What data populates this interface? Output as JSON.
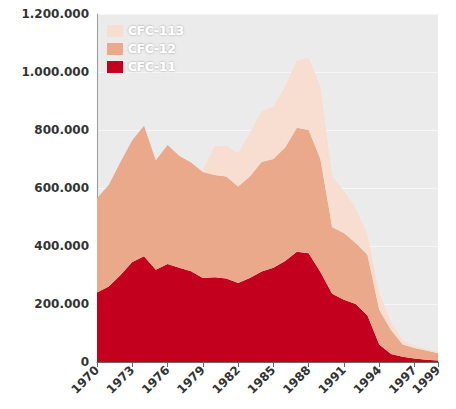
{
  "chart_data": {
    "type": "area",
    "stacked": true,
    "grid": true,
    "legend": "upper left",
    "categories": [
      "1970",
      null,
      null,
      "1973",
      null,
      null,
      "1976",
      null,
      null,
      "1979",
      null,
      null,
      "1982",
      null,
      null,
      "1985",
      null,
      null,
      "1988",
      null,
      null,
      "1991",
      null,
      null,
      "1994",
      null,
      null,
      "1997",
      null,
      "1999"
    ],
    "series": [
      {
        "name": "CFC-11",
        "color": "#c4001f",
        "values": [
          240000,
          260000,
          300000,
          345000,
          365000,
          318000,
          338000,
          325000,
          313000,
          290000,
          292000,
          288000,
          272000,
          290000,
          312000,
          325000,
          348000,
          380000,
          375000,
          310000,
          235000,
          215000,
          200000,
          160000,
          60000,
          28000,
          18000,
          12000,
          8000,
          5000
        ]
      },
      {
        "name": "CFC-12",
        "color": "#e9a98a",
        "values": [
          325000,
          350000,
          390000,
          420000,
          450000,
          377000,
          410000,
          385000,
          375000,
          365000,
          353000,
          352000,
          333000,
          350000,
          378000,
          375000,
          392000,
          428000,
          425000,
          390000,
          230000,
          230000,
          210000,
          210000,
          120000,
          82000,
          42000,
          36000,
          32000,
          25000
        ]
      },
      {
        "name": "CFC-113",
        "color": "#f8ddd1",
        "values": [
          0,
          0,
          0,
          0,
          0,
          0,
          0,
          0,
          0,
          5000,
          100000,
          105000,
          115000,
          150000,
          175000,
          180000,
          210000,
          232000,
          248000,
          250000,
          175000,
          145000,
          120000,
          70000,
          60000,
          30000,
          15000,
          7000,
          5000,
          5000
        ]
      }
    ],
    "ylim": [
      0,
      1200000
    ],
    "yticks": [
      0,
      {
        "value": 200000,
        "label": "200.000"
      },
      {
        "value": 400000,
        "label": "400.000"
      },
      {
        "value": 600000,
        "label": "600.000"
      },
      {
        "value": 800000,
        "label": "800.000"
      },
      {
        "value": 1000000,
        "label": "1.000.000"
      },
      {
        "value": 1200000,
        "label": "1.200.000"
      }
    ]
  }
}
